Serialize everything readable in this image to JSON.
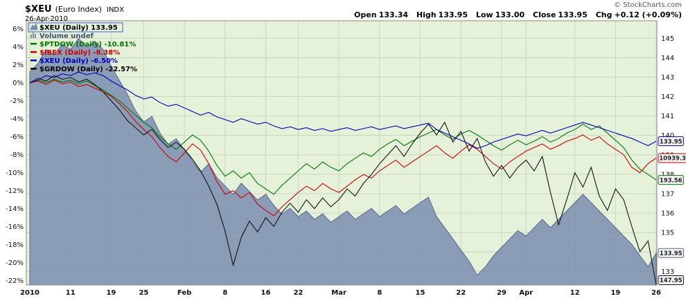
{
  "header": {
    "symbol": "$XEU",
    "name": "(Euro Index)",
    "exchange": "INDX",
    "date": "26-Apr-2010",
    "copyright": "© StockCharts.com",
    "quote": [
      {
        "label": "Open",
        "value": "133.34"
      },
      {
        "label": "High",
        "value": "133.95"
      },
      {
        "label": "Low",
        "value": "133.00"
      },
      {
        "label": "Close",
        "value": "133.95"
      },
      {
        "label": "Chg",
        "value": "+0.12 (+0.09%)"
      }
    ]
  },
  "chart_data": {
    "type": "line",
    "title": "$XEU (Euro Index) INDX",
    "legend_position": "top-left",
    "grid": true,
    "background": "#e6f1da",
    "grid_color": "#c6d9bf",
    "pct_axis": {
      "max": 6.9,
      "min": -22.5,
      "ticks": [
        6,
        4,
        2,
        0,
        -2,
        -4,
        -6,
        -8,
        -10,
        -12,
        -14,
        -16,
        -18,
        -20,
        -22
      ]
    },
    "price_axis": {
      "max": 145.9,
      "min": 132.3,
      "ticks": [
        145,
        144,
        143,
        142,
        141,
        140,
        139,
        138,
        137,
        136,
        135,
        134,
        133
      ]
    },
    "x_ticks": [
      {
        "label": "2010",
        "day": 0
      },
      {
        "label": "11",
        "day": 5
      },
      {
        "label": "19",
        "day": 10
      },
      {
        "label": "25",
        "day": 14
      },
      {
        "label": "Feb",
        "day": 19
      },
      {
        "label": "8",
        "day": 24
      },
      {
        "label": "16",
        "day": 29
      },
      {
        "label": "22",
        "day": 33
      },
      {
        "label": "Mar",
        "day": 38
      },
      {
        "label": "8",
        "day": 43
      },
      {
        "label": "15",
        "day": 48
      },
      {
        "label": "22",
        "day": 53
      },
      {
        "label": "29",
        "day": 58
      },
      {
        "label": "Apr",
        "day": 61
      },
      {
        "label": "12",
        "day": 67
      },
      {
        "label": "19",
        "day": 72
      },
      {
        "label": "26",
        "day": 77
      }
    ],
    "legend": [
      {
        "id": "xeu-price",
        "swatch": "area",
        "label": "$XEU (Daily) 133.95",
        "color": "#000000",
        "boxed": true
      },
      {
        "id": "volume",
        "swatch": "bars",
        "label": "Volume undef",
        "color": "#44506e",
        "boxed": false
      },
      {
        "id": "ptdow",
        "swatch": "line",
        "label": "$PTDOW (Daily) -10.81%",
        "color": "#007700",
        "boxed": false
      },
      {
        "id": "ibex",
        "swatch": "line",
        "label": "$IBEX (Daily) -8.38%",
        "color": "#cc0000",
        "boxed": false
      },
      {
        "id": "xeu",
        "swatch": "line",
        "label": "$XEU (Daily) -6.50%",
        "color": "#0000bb",
        "boxed": false
      },
      {
        "id": "grdow",
        "swatch": "line",
        "label": "$GRDOW (Daily) -22.57%",
        "color": "#000000",
        "boxed": false
      }
    ],
    "series": [
      {
        "id": "xeu-area",
        "name": "$XEU price area",
        "type": "area",
        "axis": "price",
        "color": "#56658a",
        "fill": "#7d8fb0",
        "last_label": "133.95",
        "values": [
          143.27,
          143.7,
          144.42,
          144.13,
          144.7,
          144.42,
          144.99,
          144.56,
          144.85,
          144.42,
          143.56,
          142.84,
          142.12,
          141.26,
          140.69,
          140.98,
          140.12,
          139.54,
          139.83,
          139.26,
          138.68,
          138.11,
          138.54,
          137.83,
          137.4,
          136.97,
          137.54,
          137.11,
          136.68,
          136.97,
          136.39,
          135.96,
          136.25,
          135.82,
          136.11,
          135.68,
          135.96,
          135.53,
          135.82,
          136.11,
          135.68,
          135.96,
          136.25,
          135.82,
          136.11,
          136.39,
          135.96,
          136.25,
          136.54,
          136.82,
          135.82,
          135.25,
          134.68,
          134.1,
          133.53,
          132.81,
          133.24,
          133.81,
          134.24,
          134.68,
          135.1,
          134.82,
          135.25,
          135.68,
          135.25,
          135.68,
          136.11,
          136.54,
          136.97,
          136.54,
          136.11,
          135.68,
          135.25,
          134.82,
          134.39,
          133.81,
          133.24,
          133.95
        ]
      },
      {
        "id": "ptdow",
        "name": "$PTDOW",
        "type": "line",
        "axis": "pct",
        "color": "#007700",
        "last_label": "193.56",
        "change": "-10.81%",
        "values": [
          0.0,
          0.3,
          0.0,
          0.4,
          0.1,
          0.3,
          -0.1,
          0.2,
          -0.3,
          -0.8,
          -1.4,
          -2.0,
          -2.8,
          -3.6,
          -4.4,
          -5.0,
          -6.0,
          -6.8,
          -7.4,
          -6.6,
          -5.8,
          -6.4,
          -7.6,
          -9.2,
          -10.4,
          -9.8,
          -10.6,
          -10.0,
          -11.2,
          -11.8,
          -12.4,
          -11.4,
          -10.6,
          -9.8,
          -9.0,
          -9.6,
          -8.8,
          -9.4,
          -9.8,
          -9.0,
          -8.4,
          -7.8,
          -8.2,
          -7.4,
          -6.8,
          -6.3,
          -7.0,
          -6.5,
          -6.0,
          -5.6,
          -5.2,
          -5.8,
          -6.3,
          -5.7,
          -5.3,
          -5.8,
          -6.4,
          -7.0,
          -7.5,
          -6.9,
          -6.4,
          -6.9,
          -6.5,
          -6.0,
          -6.6,
          -6.2,
          -5.6,
          -5.2,
          -4.6,
          -5.2,
          -4.8,
          -5.6,
          -6.4,
          -7.2,
          -8.6,
          -9.6,
          -10.2,
          -10.81
        ]
      },
      {
        "id": "ibex",
        "name": "$IBEX",
        "type": "line",
        "axis": "pct",
        "color": "#cc0000",
        "last_label": "10939.3",
        "change": "-8.38%",
        "values": [
          0.0,
          0.2,
          -0.2,
          0.3,
          -0.1,
          0.1,
          -0.4,
          -0.2,
          -0.6,
          -1.0,
          -1.5,
          -2.3,
          -3.2,
          -4.3,
          -5.2,
          -6.0,
          -7.2,
          -8.2,
          -8.8,
          -7.8,
          -6.8,
          -7.5,
          -9.0,
          -11.0,
          -12.4,
          -12.0,
          -12.8,
          -12.2,
          -13.5,
          -14.2,
          -14.8,
          -13.8,
          -13.0,
          -12.2,
          -11.5,
          -12.0,
          -11.2,
          -11.8,
          -12.2,
          -11.5,
          -10.8,
          -10.2,
          -10.6,
          -9.8,
          -9.2,
          -8.6,
          -9.4,
          -8.8,
          -8.2,
          -7.6,
          -7.0,
          -7.8,
          -8.4,
          -7.6,
          -6.9,
          -7.4,
          -8.2,
          -9.0,
          -9.6,
          -8.8,
          -8.2,
          -7.6,
          -7.2,
          -6.8,
          -7.4,
          -7.0,
          -6.5,
          -6.2,
          -5.8,
          -6.4,
          -6.0,
          -6.8,
          -7.4,
          -8.0,
          -9.4,
          -10.0,
          -9.0,
          -8.38
        ]
      },
      {
        "id": "xeu",
        "name": "$XEU",
        "type": "line",
        "axis": "pct",
        "color": "#0000bb",
        "last_label": "133.95",
        "change": "-6.50%",
        "values": [
          0.0,
          0.3,
          0.8,
          0.6,
          1.0,
          0.8,
          1.2,
          0.9,
          1.1,
          0.8,
          0.2,
          -0.3,
          -0.8,
          -1.4,
          -1.8,
          -1.6,
          -2.2,
          -2.6,
          -2.4,
          -2.8,
          -3.2,
          -3.6,
          -3.3,
          -3.8,
          -4.1,
          -4.4,
          -4.0,
          -4.3,
          -4.6,
          -4.4,
          -4.8,
          -5.1,
          -4.9,
          -5.2,
          -5.0,
          -5.3,
          -5.1,
          -5.4,
          -5.2,
          -5.0,
          -5.3,
          -5.1,
          -4.9,
          -5.2,
          -5.0,
          -4.8,
          -5.1,
          -4.9,
          -4.7,
          -4.5,
          -5.2,
          -5.6,
          -6.0,
          -6.4,
          -6.8,
          -7.3,
          -7.0,
          -6.6,
          -6.3,
          -6.0,
          -5.7,
          -5.9,
          -5.6,
          -5.3,
          -5.6,
          -5.3,
          -5.0,
          -4.7,
          -4.4,
          -4.7,
          -5.0,
          -5.3,
          -5.6,
          -5.9,
          -6.2,
          -6.6,
          -7.0,
          -6.5
        ]
      },
      {
        "id": "grdow",
        "name": "$GRDOW",
        "type": "line",
        "axis": "pct",
        "color": "#111111",
        "last_label": "147.95",
        "change": "-22.57%",
        "values": [
          0.0,
          0.5,
          0.2,
          0.8,
          0.4,
          0.6,
          0.1,
          0.4,
          -0.2,
          -1.0,
          -2.0,
          -3.0,
          -4.2,
          -5.0,
          -5.8,
          -5.2,
          -6.3,
          -7.2,
          -6.6,
          -7.4,
          -8.5,
          -9.8,
          -11.5,
          -13.5,
          -16.5,
          -20.3,
          -17.2,
          -15.4,
          -16.6,
          -15.0,
          -16.0,
          -14.4,
          -13.4,
          -14.4,
          -13.0,
          -14.0,
          -12.8,
          -13.8,
          -13.0,
          -11.8,
          -12.6,
          -11.2,
          -10.2,
          -9.0,
          -8.0,
          -7.0,
          -8.2,
          -6.8,
          -5.6,
          -4.6,
          -5.8,
          -4.4,
          -6.6,
          -5.4,
          -7.6,
          -6.2,
          -8.8,
          -10.4,
          -9.2,
          -10.6,
          -9.4,
          -8.6,
          -9.8,
          -8.2,
          -12.2,
          -15.8,
          -13.0,
          -10.0,
          -11.6,
          -9.4,
          -12.6,
          -14.2,
          -11.8,
          -13.0,
          -16.0,
          -18.8,
          -17.6,
          -22.57
        ]
      }
    ]
  }
}
